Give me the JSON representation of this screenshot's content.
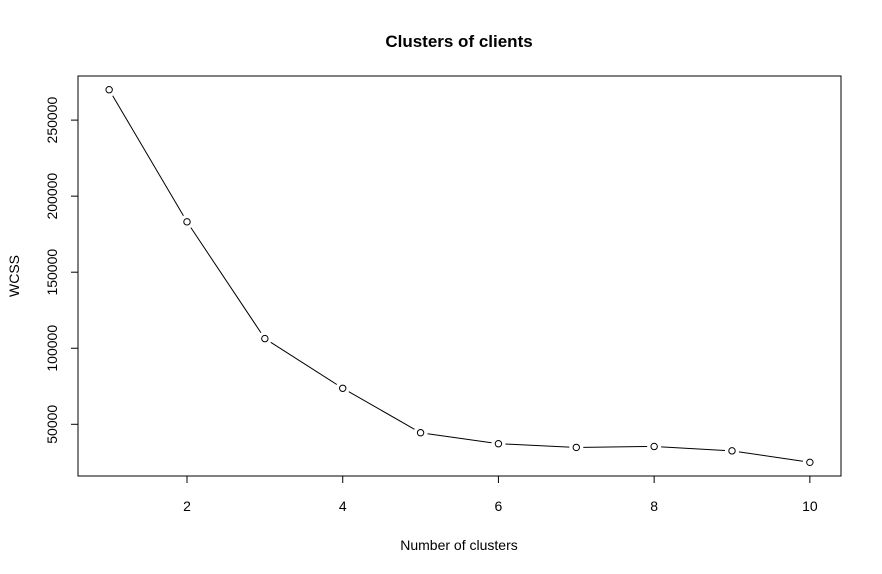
{
  "chart_data": {
    "type": "line",
    "title": "Clusters of clients",
    "xlabel": "Number of clusters",
    "ylabel": "WCSS",
    "x": [
      1,
      2,
      3,
      4,
      5,
      6,
      7,
      8,
      9,
      10
    ],
    "series": [
      {
        "values": [
          269981,
          183116,
          106348,
          73680,
          44448,
          37233,
          34802,
          35430,
          32540,
          25000
        ]
      }
    ],
    "xlim": [
      0.6,
      10.4
    ],
    "ylim": [
      16000,
      279000
    ],
    "xticks": [
      2,
      4,
      6,
      8,
      10
    ],
    "yticks": [
      50000,
      100000,
      150000,
      200000,
      250000
    ],
    "grid": false,
    "marker": "open-circle",
    "line_color": "#000000"
  }
}
